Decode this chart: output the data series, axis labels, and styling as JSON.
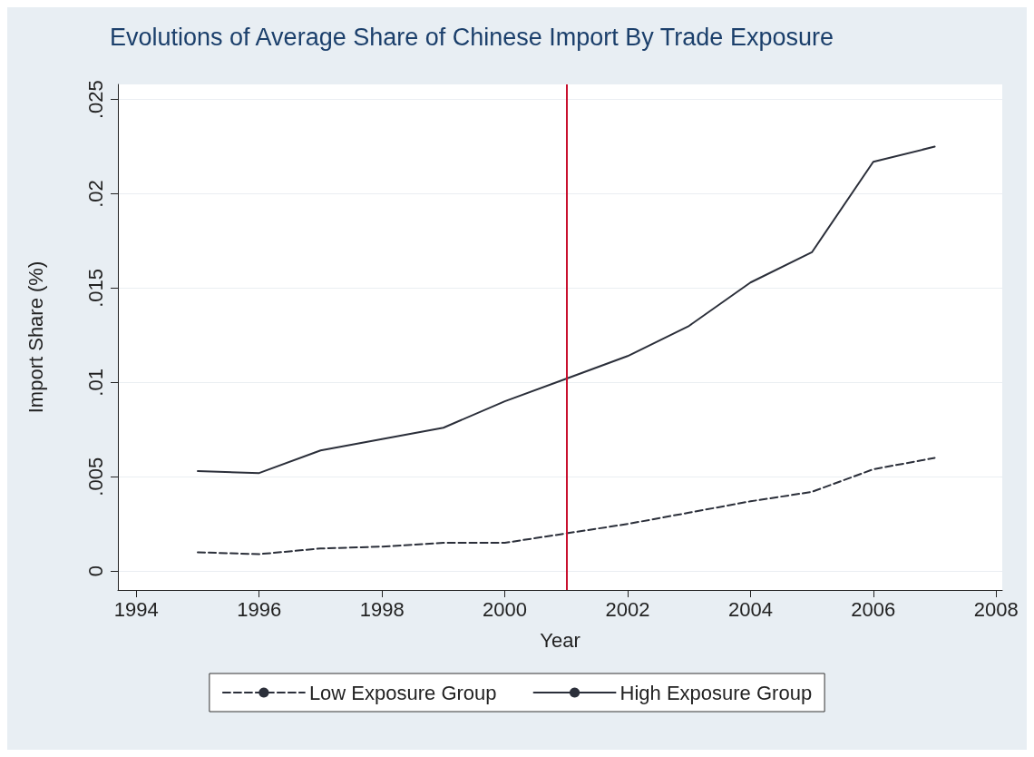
{
  "chart_data": {
    "type": "line",
    "title": "Evolutions of Average Share of Chinese Import By Trade Exposure",
    "xlabel": "Year",
    "ylabel": "Import Share (%)",
    "x": [
      1995,
      1996,
      1997,
      1998,
      1999,
      2000,
      2001,
      2002,
      2003,
      2004,
      2005,
      2006,
      2007
    ],
    "series": [
      {
        "name": "Low Exposure Group",
        "color": "#2b2f3a",
        "line_style": "dashed",
        "values": [
          0.001,
          0.0009,
          0.0012,
          0.0013,
          0.0015,
          0.0015,
          0.002,
          0.0025,
          0.0031,
          0.0037,
          0.0042,
          0.0054,
          0.006
        ]
      },
      {
        "name": "High Exposure Group",
        "color": "#2b2f3a",
        "line_style": "solid",
        "values": [
          0.0053,
          0.0052,
          0.0064,
          0.007,
          0.0076,
          0.009,
          0.0102,
          0.0114,
          0.013,
          0.0153,
          0.0169,
          0.0217,
          0.0225
        ]
      }
    ],
    "xlim": [
      1993.7,
      2008.1
    ],
    "xticks": [
      1994,
      1996,
      1998,
      2000,
      2002,
      2004,
      2006,
      2008
    ],
    "ylim": [
      -0.001,
      0.0258
    ],
    "yticks": [
      {
        "value": 0,
        "label": "0"
      },
      {
        "value": 0.005,
        "label": ".005"
      },
      {
        "value": 0.01,
        "label": ".01"
      },
      {
        "value": 0.015,
        "label": ".015"
      },
      {
        "value": 0.02,
        "label": ".02"
      },
      {
        "value": 0.025,
        "label": ".025"
      }
    ],
    "ref_lines": [
      {
        "axis": "x",
        "value": 2001,
        "color": "#c8102e"
      }
    ],
    "grid": "y",
    "legend": "bottom",
    "marker": "none"
  }
}
